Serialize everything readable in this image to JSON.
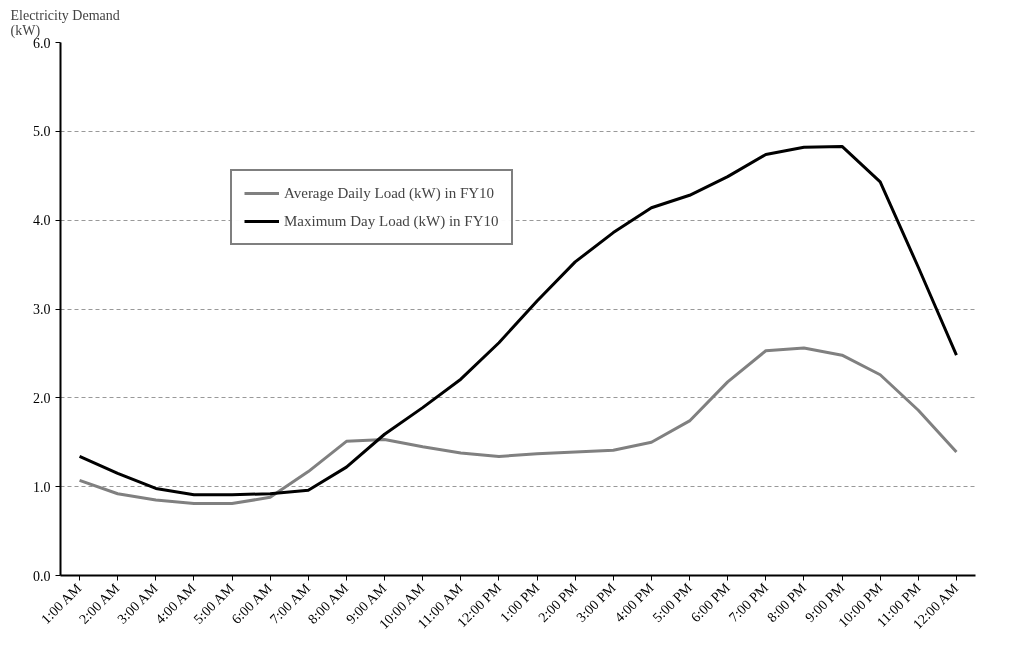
{
  "chart_data": {
    "type": "line",
    "ylabel": "Electricity Demand\n(kW)",
    "categories": [
      "1:00 AM",
      "2:00 AM",
      "3:00 AM",
      "4:00 AM",
      "5:00 AM",
      "6:00 AM",
      "7:00 AM",
      "8:00 AM",
      "9:00 AM",
      "10:00 AM",
      "11:00 AM",
      "12:00 PM",
      "1:00 PM",
      "2:00 PM",
      "3:00 PM",
      "4:00 PM",
      "5:00 PM",
      "6:00 PM",
      "7:00 PM",
      "8:00 PM",
      "9:00 PM",
      "10:00 PM",
      "11:00 PM",
      "12:00 AM"
    ],
    "series": [
      {
        "name": "Average Daily Load (kW) in FY10",
        "color": "#808080",
        "values": [
          1.07,
          0.92,
          0.85,
          0.81,
          0.81,
          0.88,
          1.17,
          1.51,
          1.53,
          1.45,
          1.38,
          1.34,
          1.37,
          1.39,
          1.41,
          1.5,
          1.74,
          2.18,
          2.53,
          2.56,
          2.48,
          2.26,
          1.86,
          1.39
        ]
      },
      {
        "name": "Maximum Day Load (kW) in FY10",
        "color": "#000000",
        "values": [
          1.34,
          1.15,
          0.98,
          0.91,
          0.91,
          0.92,
          0.96,
          1.22,
          1.59,
          1.89,
          2.21,
          2.62,
          3.09,
          3.53,
          3.86,
          4.14,
          4.28,
          4.49,
          4.74,
          4.82,
          4.83,
          4.43,
          3.47,
          2.48
        ]
      }
    ],
    "ylim": [
      0,
      6
    ],
    "yticks": [
      {
        "value": 0,
        "label": "0.0"
      },
      {
        "value": 1,
        "label": "1.0"
      },
      {
        "value": 2,
        "label": "2.0"
      },
      {
        "value": 3,
        "label": "3.0"
      },
      {
        "value": 4,
        "label": "4.0"
      },
      {
        "value": 5,
        "label": "5.0"
      },
      {
        "value": 6,
        "label": "6.0"
      }
    ],
    "grid": "y",
    "legend": "top left",
    "marker": "none",
    "line_style": "solid"
  }
}
